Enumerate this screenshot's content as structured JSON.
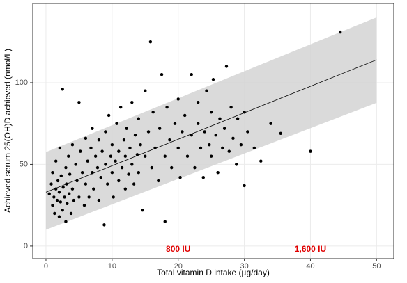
{
  "chart_data": {
    "type": "scatter",
    "x_label": "Total vitamin D intake (µg/day)",
    "y_label": "Achieved serum 25(OH)D achieved (nmol/L)",
    "xlim": [
      -2,
      52.6
    ],
    "ylim": [
      -7.7,
      148.5
    ],
    "xticks": [
      0,
      10,
      20,
      30,
      40,
      50
    ],
    "yticks": [
      0,
      50,
      100
    ],
    "grid": true,
    "series": [
      {
        "color": "#000000",
        "x": [
          0.5,
          0.8,
          1,
          1,
          1.2,
          1.3,
          1.5,
          1.5,
          1.7,
          1.8,
          2,
          2,
          2.1,
          2.2,
          2.3,
          2.5,
          2.5,
          2.6,
          2.8,
          3,
          3,
          3.1,
          3.2,
          3.4,
          3.5,
          3.6,
          3.8,
          4,
          4,
          4.2,
          4.5,
          4.7,
          5,
          5,
          5.2,
          5.5,
          5.8,
          6,
          6,
          6.3,
          6.5,
          6.8,
          7,
          7,
          7.2,
          7.5,
          7.8,
          8,
          8,
          8.3,
          8.5,
          8.8,
          9,
          9,
          9.3,
          9.5,
          9.8,
          10,
          10,
          10.2,
          10.5,
          10.7,
          11,
          11,
          11.3,
          11.5,
          11.8,
          12,
          12,
          12.2,
          12.5,
          12.7,
          13,
          13,
          13.3,
          13.5,
          13.8,
          14,
          14,
          14.3,
          14.6,
          15,
          15,
          15.5,
          15.8,
          16,
          16.2,
          16.5,
          17,
          17.2,
          17.5,
          18,
          18,
          18.3,
          18.7,
          19,
          19.5,
          20,
          20,
          20.3,
          20.6,
          21,
          21.4,
          22,
          22,
          22.5,
          23,
          23,
          23.4,
          23.8,
          24,
          24.3,
          24.7,
          25,
          25,
          25.3,
          25.7,
          26,
          26.3,
          26.7,
          27,
          27.3,
          27.7,
          28,
          28.3,
          28.8,
          29,
          29.5,
          30,
          30,
          30.5,
          31.5,
          32.5,
          34,
          35.5,
          40,
          44.5
        ],
        "values": [
          32,
          38,
          25,
          45,
          30,
          20,
          35,
          52,
          28,
          40,
          18,
          33,
          60,
          27,
          43,
          96,
          22,
          36,
          30,
          48,
          15,
          38,
          26,
          55,
          32,
          44,
          20,
          62,
          35,
          28,
          50,
          40,
          88,
          30,
          58,
          45,
          25,
          66,
          38,
          52,
          30,
          60,
          45,
          72,
          35,
          55,
          48,
          28,
          65,
          42,
          58,
          13,
          50,
          70,
          38,
          80,
          55,
          45,
          62,
          30,
          52,
          75,
          40,
          58,
          85,
          48,
          65,
          35,
          55,
          72,
          44,
          60,
          50,
          88,
          38,
          68,
          56,
          45,
          78,
          62,
          22,
          55,
          95,
          70,
          125,
          48,
          82,
          60,
          40,
          72,
          105,
          55,
          15,
          85,
          65,
          48,
          75,
          60,
          90,
          42,
          70,
          80,
          55,
          68,
          105,
          48,
          75,
          88,
          60,
          42,
          70,
          95,
          62,
          55,
          82,
          102,
          68,
          45,
          78,
          60,
          72,
          110,
          58,
          85,
          66,
          50,
          78,
          62,
          82,
          37,
          70,
          60,
          52,
          75,
          69,
          58,
          131
        ]
      }
    ],
    "fit": {
      "color": "#000000",
      "x": [
        0,
        50
      ],
      "values": [
        33,
        114
      ]
    },
    "band": {
      "color": "#d3d3d3",
      "x": [
        0,
        50
      ],
      "lower": [
        10,
        87.7
      ],
      "upper": [
        57.5,
        140
      ]
    },
    "annotations": [
      {
        "text": "800 IU",
        "x": 20,
        "y": -2
      },
      {
        "text": "1,600 IU",
        "x": 40,
        "y": -2
      }
    ]
  }
}
